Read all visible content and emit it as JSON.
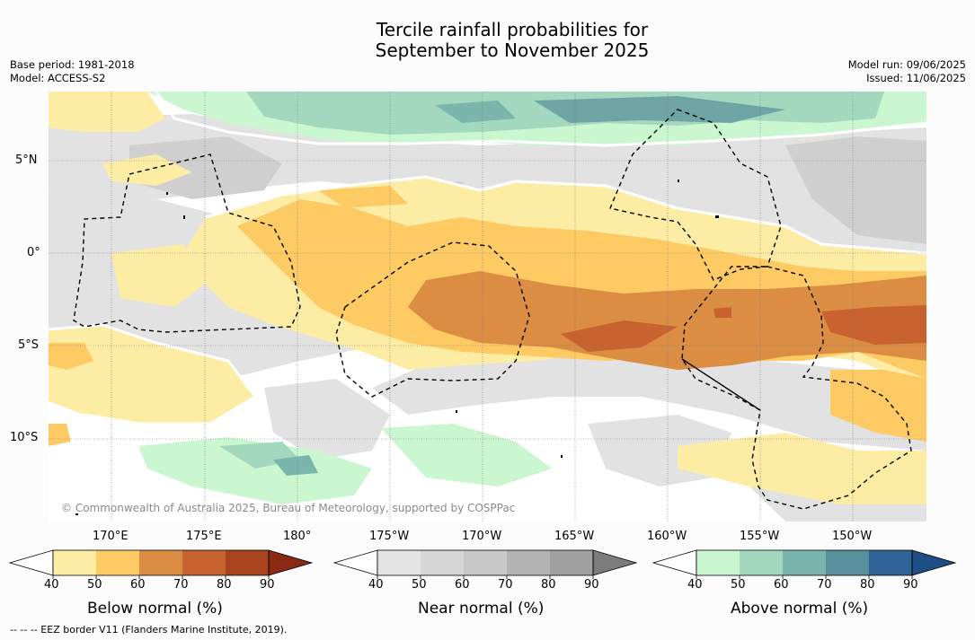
{
  "title": {
    "line1": "Tercile rainfall probabilities for",
    "line2": "September to November 2025"
  },
  "meta_left": {
    "base_period": "Base period: 1981-2018",
    "model": "Model: ACCESS-S2"
  },
  "meta_right": {
    "model_run": "Model run: 09/06/2025",
    "issued": "Issued: 11/06/2025"
  },
  "map": {
    "lat_labels": [
      "5°N",
      "0°",
      "5°S",
      "10°S"
    ],
    "lon_labels": [
      "170°E",
      "175°E",
      "180°",
      "175°W",
      "170°W",
      "165°W",
      "160°W",
      "155°W",
      "150°W"
    ],
    "copyright": "© Commonwealth of Australia 2025, Bureau of Meteorology, supported by COSPPac"
  },
  "colorbars": [
    {
      "title": "Below normal (%)",
      "ticks": [
        "40",
        "50",
        "60",
        "70",
        "80",
        "90"
      ],
      "colors": [
        "#fdeca4",
        "#fdca64",
        "#dc8d44",
        "#c8622e",
        "#a9441f",
        "#8a2a14"
      ]
    },
    {
      "title": "Near normal (%)",
      "ticks": [
        "40",
        "50",
        "60",
        "70",
        "80",
        "90"
      ],
      "colors": [
        "#e4e4e4",
        "#d6d6d6",
        "#c8c8c8",
        "#b3b3b3",
        "#a0a0a0",
        "#7c7c7c"
      ]
    },
    {
      "title": "Above normal (%)",
      "ticks": [
        "40",
        "50",
        "60",
        "70",
        "80",
        "90"
      ],
      "colors": [
        "#caf7cf",
        "#a3d8bf",
        "#7bb6ae",
        "#58909e",
        "#306396",
        "#1d4f86"
      ]
    }
  ],
  "footnote": "--  --  -- EEZ border V11 (Flanders Marine Institute, 2019)."
}
